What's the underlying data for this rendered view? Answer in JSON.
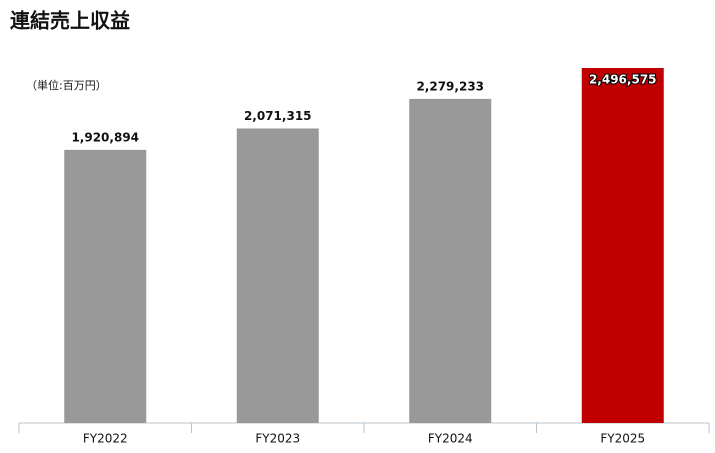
{
  "chart_data": {
    "type": "bar",
    "title": "連結売上収益",
    "unit_label": "（単位:百万円）",
    "categories": [
      "FY2022",
      "FY2023",
      "FY2024",
      "FY2025"
    ],
    "values": [
      1920894,
      2071315,
      2279233,
      2496575
    ],
    "value_labels": [
      "1,920,894",
      "2,071,315",
      "2,279,233",
      "2,496,575"
    ],
    "colors": [
      "#999999",
      "#999999",
      "#999999",
      "#c00000"
    ]
  }
}
